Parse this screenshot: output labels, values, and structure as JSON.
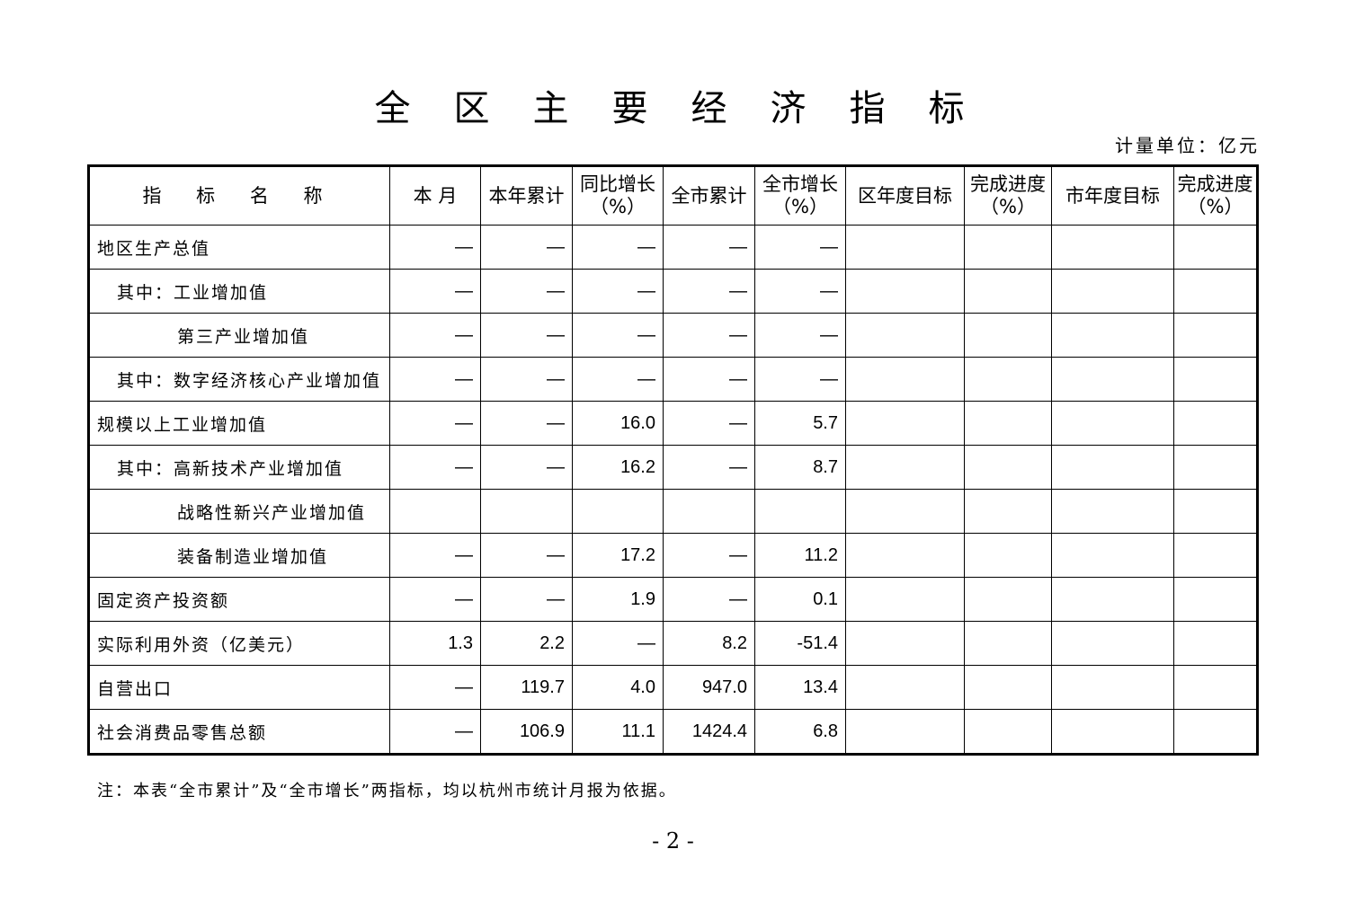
{
  "title": "全区主要经济指标",
  "unit": "计量单位：亿元",
  "headers": [
    "指 标 名 称",
    "本 月",
    "本年累计",
    "同比增长（%）",
    "全市累计",
    "全市增长（%）",
    "区年度目标",
    "完成进度（%）",
    "市年度目标",
    "完成进度（%）"
  ],
  "rows": [
    {
      "name": "地区生产总值",
      "indent": 0,
      "values": [
        "—",
        "—",
        "—",
        "—",
        "—",
        "",
        "",
        "",
        ""
      ]
    },
    {
      "name": "其中：工业增加值",
      "indent": 1,
      "values": [
        "—",
        "—",
        "—",
        "—",
        "—",
        "",
        "",
        "",
        ""
      ]
    },
    {
      "name": "第三产业增加值",
      "indent": 2,
      "values": [
        "—",
        "—",
        "—",
        "—",
        "—",
        "",
        "",
        "",
        ""
      ]
    },
    {
      "name": "其中：数字经济核心产业增加值",
      "indent": 1,
      "values": [
        "—",
        "—",
        "—",
        "—",
        "—",
        "",
        "",
        "",
        ""
      ]
    },
    {
      "name": "规模以上工业增加值",
      "indent": 0,
      "values": [
        "—",
        "—",
        "16.0",
        "—",
        "5.7",
        "",
        "",
        "",
        ""
      ]
    },
    {
      "name": "其中：高新技术产业增加值",
      "indent": 1,
      "values": [
        "—",
        "—",
        "16.2",
        "—",
        "8.7",
        "",
        "",
        "",
        ""
      ]
    },
    {
      "name": "战略性新兴产业增加值",
      "indent": 2,
      "values": [
        "",
        "",
        "",
        "",
        "",
        "",
        "",
        "",
        ""
      ]
    },
    {
      "name": "装备制造业增加值",
      "indent": 2,
      "values": [
        "—",
        "—",
        "17.2",
        "—",
        "11.2",
        "",
        "",
        "",
        ""
      ]
    },
    {
      "name": "固定资产投资额",
      "indent": 0,
      "values": [
        "—",
        "—",
        "1.9",
        "—",
        "0.1",
        "",
        "",
        "",
        ""
      ]
    },
    {
      "name": "实际利用外资（亿美元）",
      "indent": 0,
      "values": [
        "1.3",
        "2.2",
        "—",
        "8.2",
        "-51.4",
        "",
        "",
        "",
        ""
      ]
    },
    {
      "name": "自营出口",
      "indent": 0,
      "values": [
        "—",
        "119.7",
        "4.0",
        "947.0",
        "13.4",
        "",
        "",
        "",
        ""
      ]
    },
    {
      "name": "社会消费品零售总额",
      "indent": 0,
      "values": [
        "—",
        "106.9",
        "11.1",
        "1424.4",
        "6.8",
        "",
        "",
        "",
        ""
      ]
    }
  ],
  "note": "注：本表“全市累计”及“全市增长”两指标，均以杭州市统计月报为依据。",
  "page_number": "- 2 -"
}
